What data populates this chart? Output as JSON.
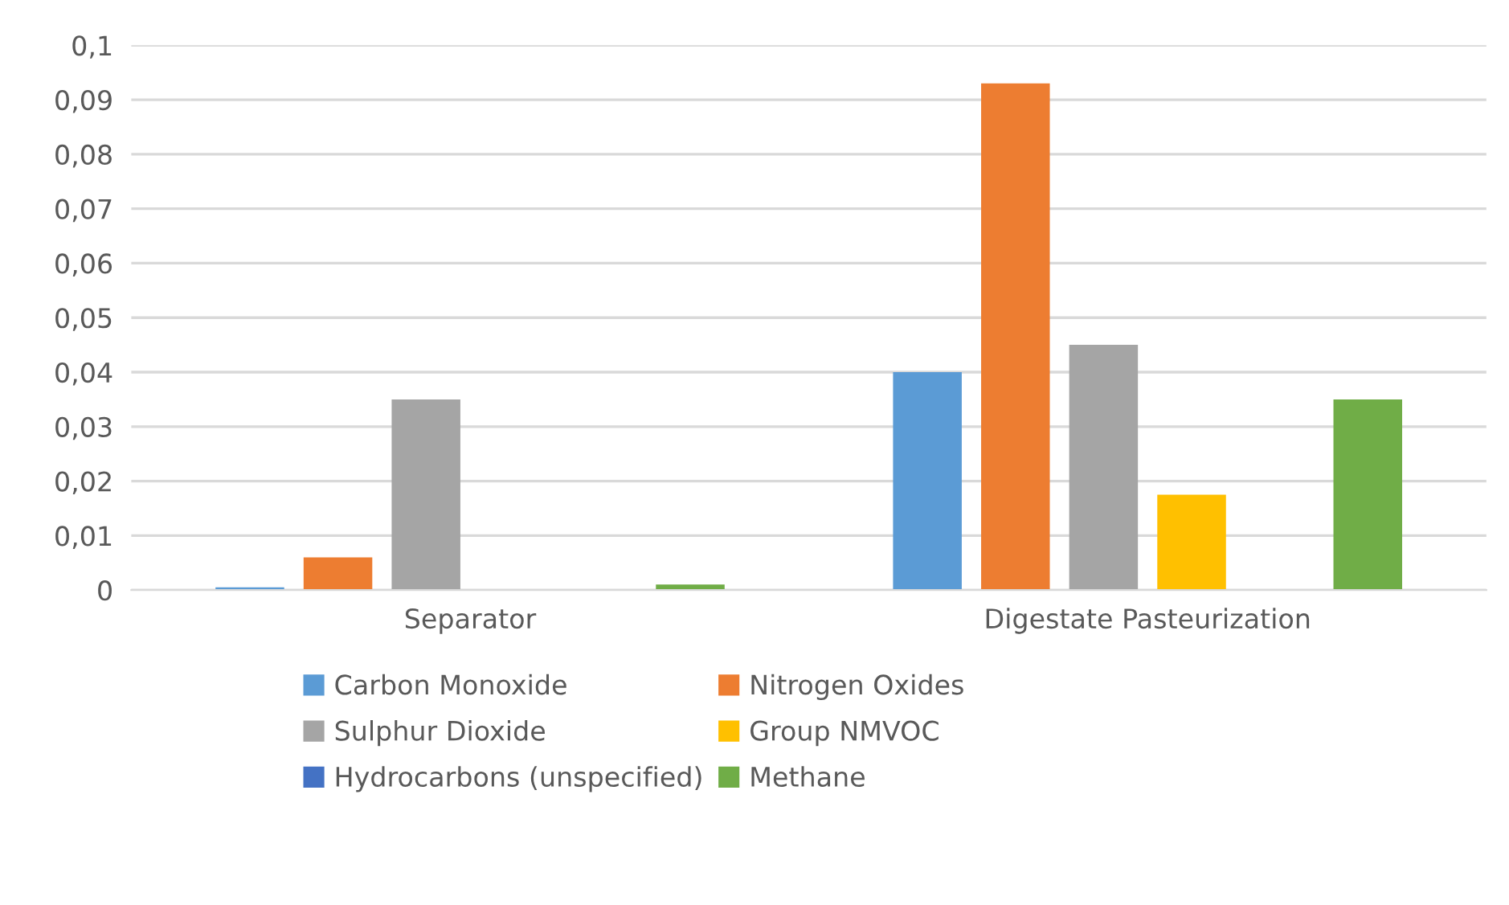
{
  "chart_data": {
    "type": "bar",
    "categories": [
      "Separator",
      "Digestate Pasteurization"
    ],
    "series": [
      {
        "name": "Carbon Monoxide",
        "color": "#5b9bd5",
        "values": [
          0.0005,
          0.04
        ]
      },
      {
        "name": "Nitrogen Oxides",
        "color": "#ed7d31",
        "values": [
          0.006,
          0.093
        ]
      },
      {
        "name": "Sulphur Dioxide",
        "color": "#a5a5a5",
        "values": [
          0.035,
          0.045
        ]
      },
      {
        "name": "Group NMVOC",
        "color": "#ffc000",
        "values": [
          null,
          0.0175
        ]
      },
      {
        "name": "Hydrocarbons (unspecified)",
        "color": "#4472c4",
        "values": [
          null,
          null
        ]
      },
      {
        "name": "Methane",
        "color": "#70ad47",
        "values": [
          0.001,
          0.035
        ]
      }
    ],
    "ylim": [
      0,
      0.1
    ],
    "yticks": [
      {
        "value": 0,
        "label": "0"
      },
      {
        "value": 0.01,
        "label": "0,01"
      },
      {
        "value": 0.02,
        "label": "0,02"
      },
      {
        "value": 0.03,
        "label": "0,03"
      },
      {
        "value": 0.04,
        "label": "0,04"
      },
      {
        "value": 0.05,
        "label": "0,05"
      },
      {
        "value": 0.06,
        "label": "0,06"
      },
      {
        "value": 0.07,
        "label": "0,07"
      },
      {
        "value": 0.08,
        "label": "0,08"
      },
      {
        "value": 0.09,
        "label": "0,09"
      },
      {
        "value": 0.1,
        "label": "0,1"
      }
    ],
    "grid": "y",
    "legend": "bottom"
  }
}
